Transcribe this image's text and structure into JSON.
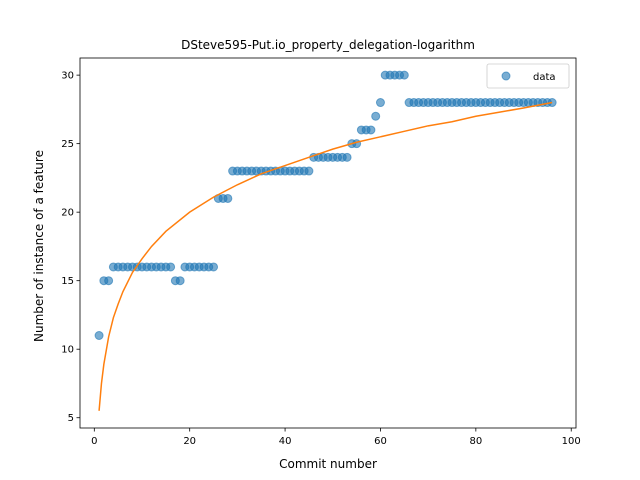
{
  "chart_data": {
    "type": "scatter",
    "title": "DSteve595-Put.io_property_delegation-logarithm",
    "xlabel": "Commit number",
    "ylabel": "Number of instance of a feature",
    "xlim": [
      -3,
      101
    ],
    "ylim": [
      4.25,
      31.25
    ],
    "xticks": [
      0,
      20,
      40,
      60,
      80,
      100
    ],
    "yticks": [
      5,
      10,
      15,
      20,
      25,
      30
    ],
    "grid": false,
    "legend": {
      "position": "top-right",
      "entries": [
        "data"
      ]
    },
    "colors": {
      "data": "#1f77b4",
      "fit": "#ff7f0e"
    },
    "series": [
      {
        "name": "data",
        "kind": "scatter",
        "x": [
          1,
          2,
          3,
          4,
          5,
          6,
          7,
          8,
          9,
          10,
          11,
          12,
          13,
          14,
          15,
          16,
          17,
          18,
          19,
          20,
          21,
          22,
          23,
          24,
          25,
          26,
          27,
          28,
          29,
          30,
          31,
          32,
          33,
          34,
          35,
          36,
          37,
          38,
          39,
          40,
          41,
          42,
          43,
          44,
          45,
          46,
          47,
          48,
          49,
          50,
          51,
          52,
          53,
          54,
          55,
          56,
          57,
          58,
          59,
          60,
          61,
          62,
          63,
          64,
          65,
          66,
          67,
          68,
          69,
          70,
          71,
          72,
          73,
          74,
          75,
          76,
          77,
          78,
          79,
          80,
          81,
          82,
          83,
          84,
          85,
          86,
          87,
          88,
          89,
          90,
          91,
          92,
          93,
          94,
          95,
          96
        ],
        "y": [
          11,
          15,
          15,
          16,
          16,
          16,
          16,
          16,
          16,
          16,
          16,
          16,
          16,
          16,
          16,
          16,
          15,
          15,
          16,
          16,
          16,
          16,
          16,
          16,
          16,
          21,
          21,
          21,
          23,
          23,
          23,
          23,
          23,
          23,
          23,
          23,
          23,
          23,
          23,
          23,
          23,
          23,
          23,
          23,
          23,
          24,
          24,
          24,
          24,
          24,
          24,
          24,
          24,
          25,
          25,
          26,
          26,
          26,
          27,
          28,
          30,
          30,
          30,
          30,
          30,
          28,
          28,
          28,
          28,
          28,
          28,
          28,
          28,
          28,
          28,
          28,
          28,
          28,
          28,
          28,
          28,
          28,
          28,
          28,
          28,
          28,
          28,
          28,
          28,
          28,
          28,
          28,
          28,
          28,
          28,
          28
        ]
      },
      {
        "name": "",
        "kind": "line",
        "x": [
          1,
          1.5,
          2,
          3,
          4,
          5,
          6,
          8,
          10,
          12,
          15,
          20,
          25,
          30,
          35,
          40,
          45,
          50,
          55,
          60,
          65,
          70,
          75,
          80,
          85,
          90,
          96
        ],
        "y": [
          5.5,
          7.5,
          8.9,
          10.9,
          12.3,
          13.3,
          14.2,
          15.6,
          16.6,
          17.5,
          18.6,
          20.0,
          21.1,
          22.0,
          22.8,
          23.4,
          24.0,
          24.6,
          25.1,
          25.5,
          25.9,
          26.3,
          26.6,
          27.0,
          27.3,
          27.6,
          28.0
        ]
      }
    ]
  }
}
